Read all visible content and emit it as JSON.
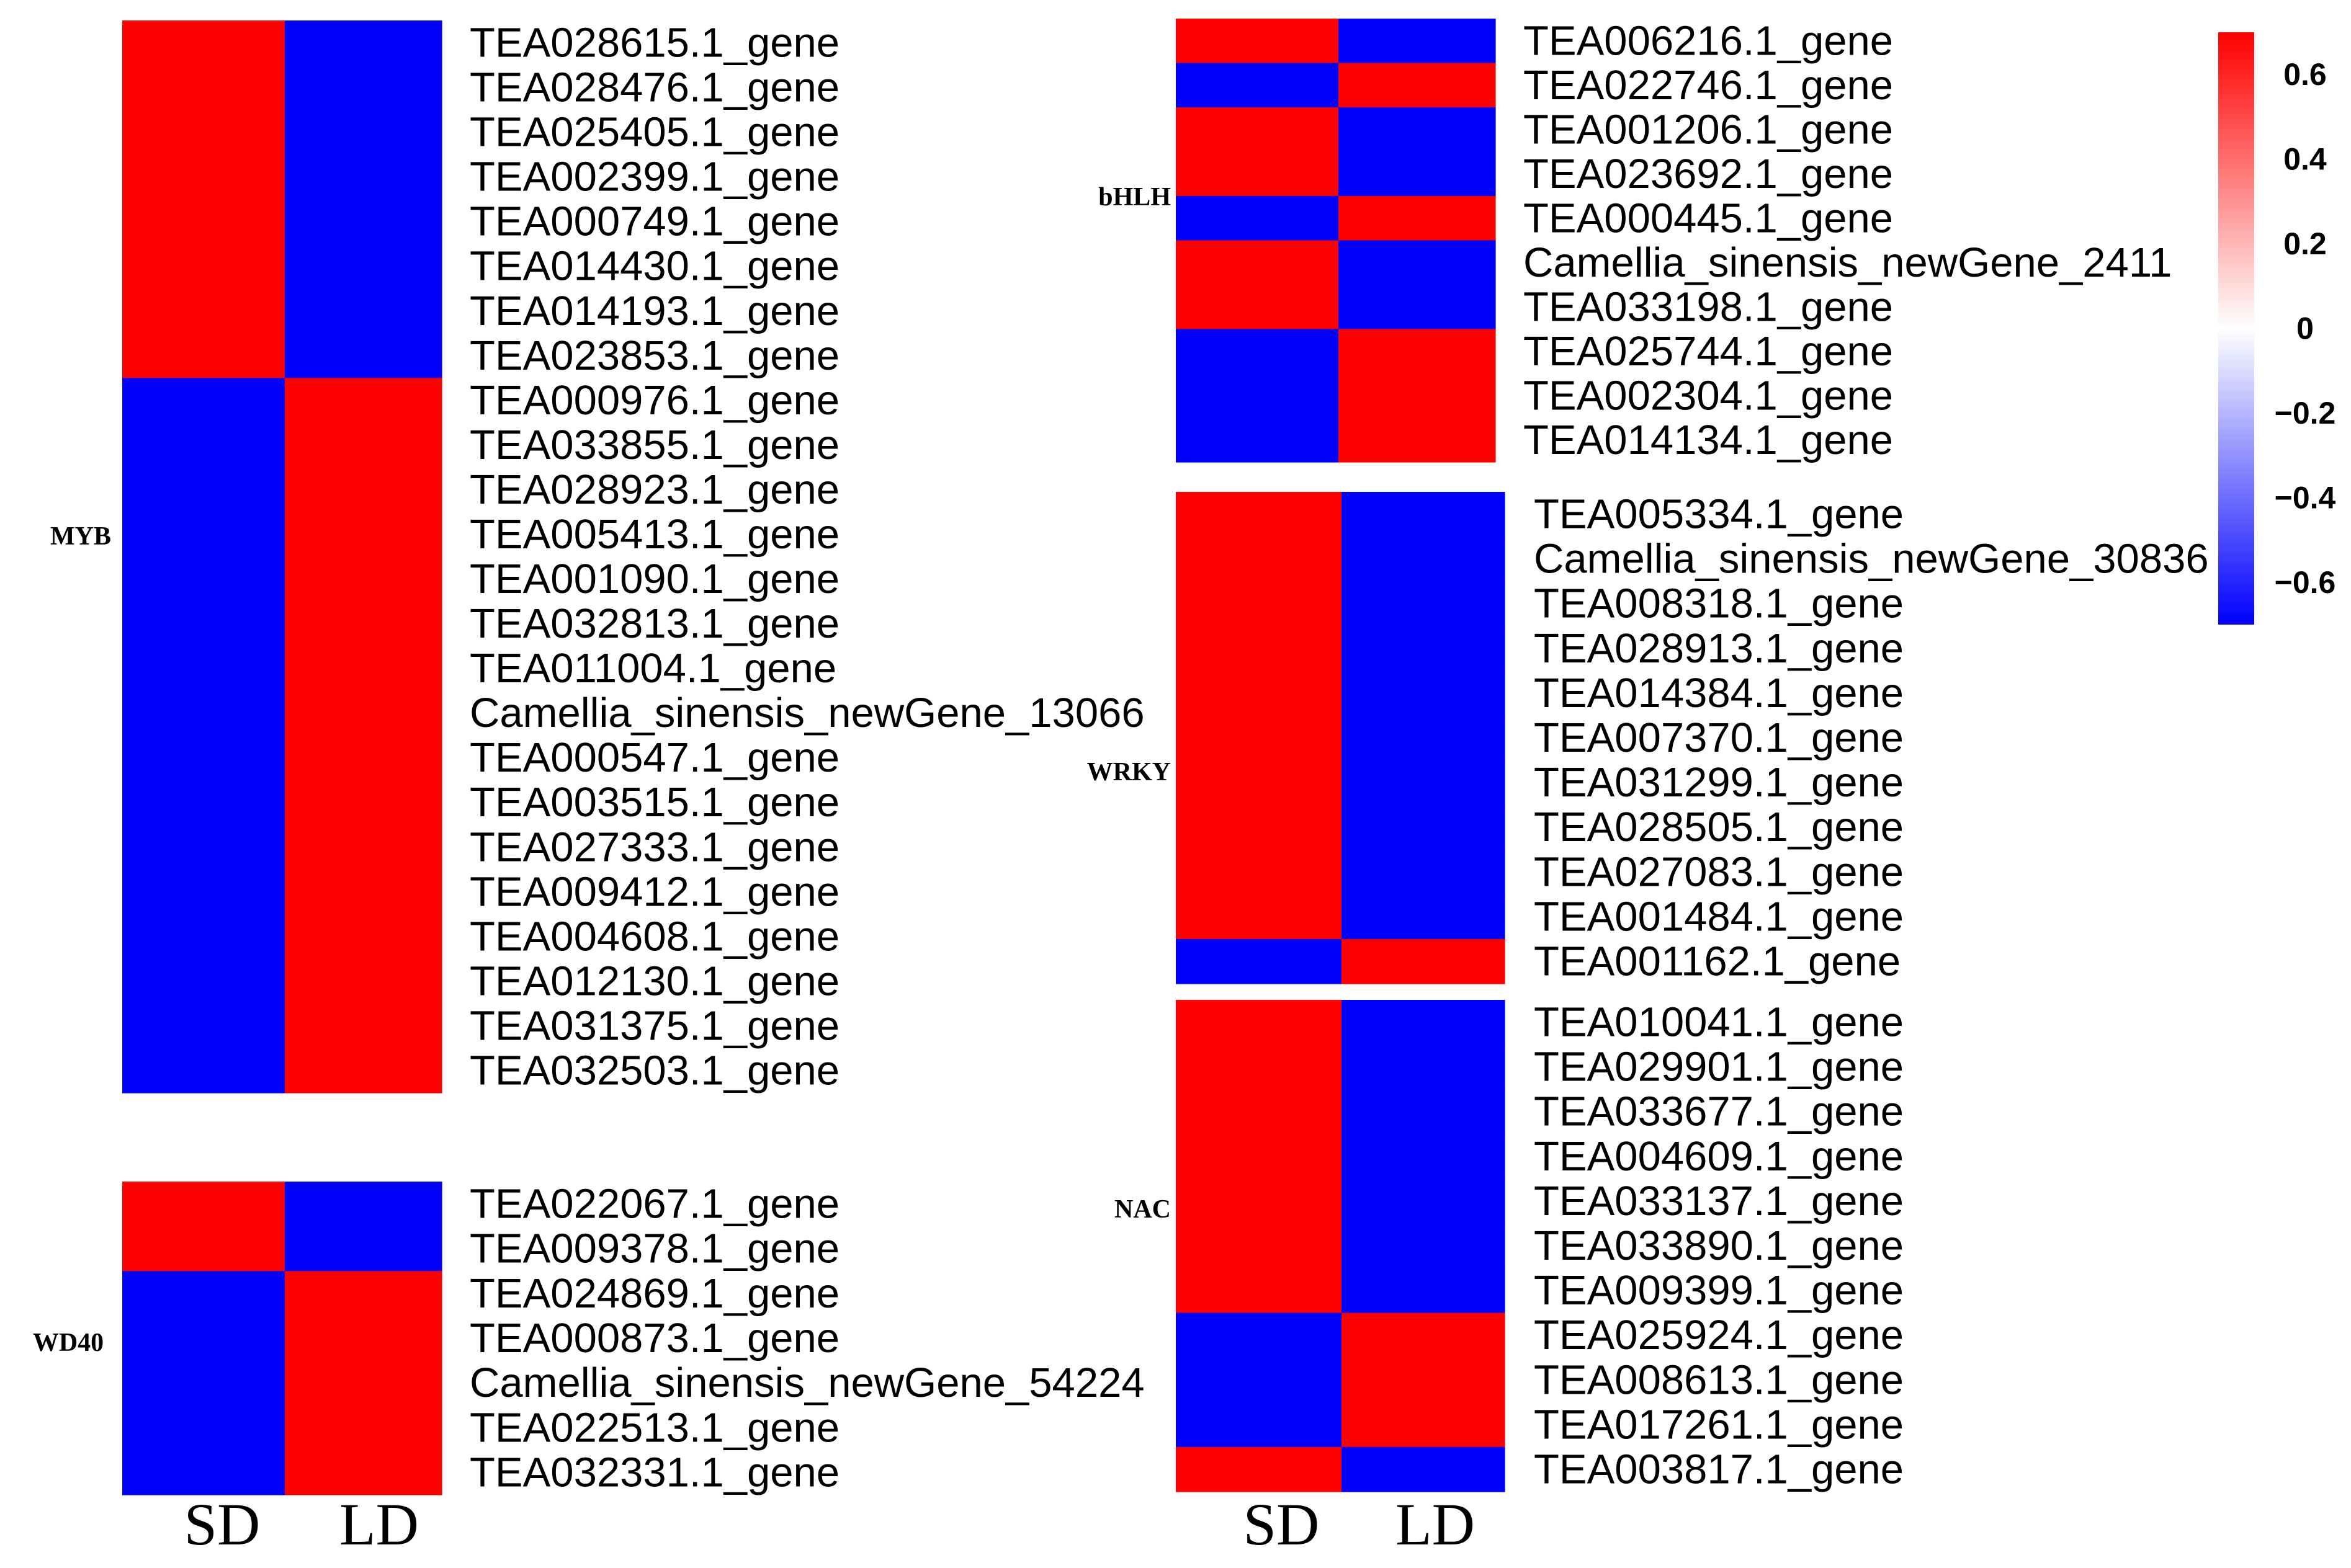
{
  "chart_data": {
    "type": "heatmap",
    "colors": {
      "high": "#ff0000",
      "mid": "#ffffff",
      "low": "#0000ff"
    },
    "colorbar": {
      "range": [
        -0.7,
        0.7
      ],
      "ticks": [
        {
          "value": 0.6,
          "label": "0.6"
        },
        {
          "value": 0.4,
          "label": "0.4"
        },
        {
          "value": 0.2,
          "label": "0.2"
        },
        {
          "value": 0.0,
          "label": "0"
        },
        {
          "value": -0.2,
          "label": "−0.2"
        },
        {
          "value": -0.4,
          "label": "−0.4"
        },
        {
          "value": -0.6,
          "label": "−0.6"
        }
      ]
    },
    "panels": [
      {
        "family": "MYB",
        "columns": [
          "SD",
          "LD"
        ],
        "genes": [
          "TEA028615.1_gene",
          "TEA028476.1_gene",
          "TEA025405.1_gene",
          "TEA002399.1_gene",
          "TEA000749.1_gene",
          "TEA014430.1_gene",
          "TEA014193.1_gene",
          "TEA023853.1_gene",
          "TEA000976.1_gene",
          "TEA033855.1_gene",
          "TEA028923.1_gene",
          "TEA005413.1_gene",
          "TEA001090.1_gene",
          "TEA032813.1_gene",
          "TEA011004.1_gene",
          "Camellia_sinensis_newGene_13066",
          "TEA000547.1_gene",
          "TEA003515.1_gene",
          "TEA027333.1_gene",
          "TEA009412.1_gene",
          "TEA004608.1_gene",
          "TEA012130.1_gene",
          "TEA031375.1_gene",
          "TEA032503.1_gene"
        ],
        "values": [
          [
            0.7,
            -0.7
          ],
          [
            0.7,
            -0.7
          ],
          [
            0.7,
            -0.7
          ],
          [
            0.7,
            -0.7
          ],
          [
            0.7,
            -0.7
          ],
          [
            0.7,
            -0.7
          ],
          [
            0.7,
            -0.7
          ],
          [
            0.7,
            -0.7
          ],
          [
            -0.7,
            0.7
          ],
          [
            -0.7,
            0.7
          ],
          [
            -0.7,
            0.7
          ],
          [
            -0.7,
            0.7
          ],
          [
            -0.7,
            0.7
          ],
          [
            -0.7,
            0.7
          ],
          [
            -0.7,
            0.7
          ],
          [
            -0.7,
            0.7
          ],
          [
            -0.7,
            0.7
          ],
          [
            -0.7,
            0.7
          ],
          [
            -0.7,
            0.7
          ],
          [
            -0.7,
            0.7
          ],
          [
            -0.7,
            0.7
          ],
          [
            -0.7,
            0.7
          ],
          [
            -0.7,
            0.7
          ],
          [
            -0.7,
            0.7
          ]
        ]
      },
      {
        "family": "WD40",
        "columns": [
          "SD",
          "LD"
        ],
        "genes": [
          "TEA022067.1_gene",
          "TEA009378.1_gene",
          "TEA024869.1_gene",
          "TEA000873.1_gene",
          "Camellia_sinensis_newGene_54224",
          "TEA022513.1_gene",
          "TEA032331.1_gene"
        ],
        "values": [
          [
            0.7,
            -0.7
          ],
          [
            0.7,
            -0.7
          ],
          [
            -0.7,
            0.7
          ],
          [
            -0.7,
            0.7
          ],
          [
            -0.7,
            0.7
          ],
          [
            -0.7,
            0.7
          ],
          [
            -0.7,
            0.7
          ]
        ]
      },
      {
        "family": "bHLH",
        "columns": [
          "SD",
          "LD"
        ],
        "genes": [
          "TEA006216.1_gene",
          "TEA022746.1_gene",
          "TEA001206.1_gene",
          "TEA023692.1_gene",
          "TEA000445.1_gene",
          "Camellia_sinensis_newGene_2411",
          "TEA033198.1_gene",
          "TEA025744.1_gene",
          "TEA002304.1_gene",
          "TEA014134.1_gene"
        ],
        "values": [
          [
            0.7,
            -0.7
          ],
          [
            -0.7,
            0.7
          ],
          [
            0.7,
            -0.7
          ],
          [
            0.7,
            -0.7
          ],
          [
            -0.7,
            0.7
          ],
          [
            0.7,
            -0.7
          ],
          [
            0.7,
            -0.7
          ],
          [
            -0.7,
            0.7
          ],
          [
            -0.7,
            0.7
          ],
          [
            -0.7,
            0.7
          ]
        ]
      },
      {
        "family": "WRKY",
        "columns": [
          "SD",
          "LD"
        ],
        "genes": [
          "TEA005334.1_gene",
          "Camellia_sinensis_newGene_30836",
          "TEA008318.1_gene",
          "TEA028913.1_gene",
          "TEA014384.1_gene",
          "TEA007370.1_gene",
          "TEA031299.1_gene",
          "TEA028505.1_gene",
          "TEA027083.1_gene",
          "TEA001484.1_gene",
          "TEA001162.1_gene"
        ],
        "values": [
          [
            0.7,
            -0.7
          ],
          [
            0.7,
            -0.7
          ],
          [
            0.7,
            -0.7
          ],
          [
            0.7,
            -0.7
          ],
          [
            0.7,
            -0.7
          ],
          [
            0.7,
            -0.7
          ],
          [
            0.7,
            -0.7
          ],
          [
            0.7,
            -0.7
          ],
          [
            0.7,
            -0.7
          ],
          [
            0.7,
            -0.7
          ],
          [
            -0.7,
            0.7
          ]
        ]
      },
      {
        "family": "NAC",
        "columns": [
          "SD",
          "LD"
        ],
        "genes": [
          "TEA010041.1_gene",
          "TEA029901.1_gene",
          "TEA033677.1_gene",
          "TEA004609.1_gene",
          "TEA033137.1_gene",
          "TEA033890.1_gene",
          "TEA009399.1_gene",
          "TEA025924.1_gene",
          "TEA008613.1_gene",
          "TEA017261.1_gene",
          "TEA003817.1_gene"
        ],
        "values": [
          [
            0.7,
            -0.7
          ],
          [
            0.7,
            -0.7
          ],
          [
            0.7,
            -0.7
          ],
          [
            0.7,
            -0.7
          ],
          [
            0.7,
            -0.7
          ],
          [
            0.7,
            -0.7
          ],
          [
            0.7,
            -0.7
          ],
          [
            -0.7,
            0.7
          ],
          [
            -0.7,
            0.7
          ],
          [
            -0.7,
            0.7
          ],
          [
            0.7,
            -0.7
          ]
        ]
      }
    ]
  }
}
